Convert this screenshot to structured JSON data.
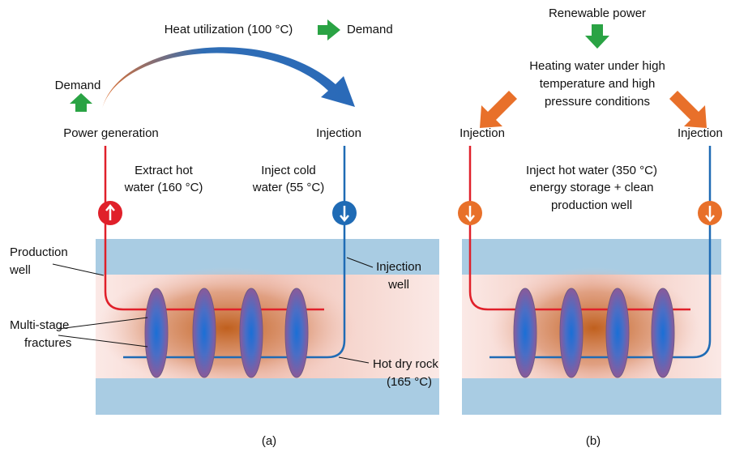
{
  "panel_a": {
    "heat_utilization": "Heat utilization (100 °C)",
    "demand_top": "Demand",
    "demand_left": "Demand",
    "power_generation": "Power generation",
    "injection": "Injection",
    "extract": [
      "Extract hot",
      "water (160 °C)"
    ],
    "inject_cold": [
      "Inject cold",
      "water (55 °C)"
    ],
    "production_well": [
      "Production",
      "well"
    ],
    "injection_well": [
      "Injection",
      "well"
    ],
    "fractures": [
      "Multi-stage",
      "fractures"
    ],
    "hot_dry_rock": [
      "Hot dry rock",
      "(165 °C)"
    ],
    "label": "(a)"
  },
  "panel_b": {
    "renewable": "Renewable power",
    "heating": [
      "Heating water under high",
      "temperature and high",
      "pressure conditions"
    ],
    "injection_left": "Injection",
    "injection_right": "Injection",
    "inject_hot": [
      "Inject hot water (350 °C)",
      "energy storage + clean",
      "production well"
    ],
    "label": "(b)"
  }
}
